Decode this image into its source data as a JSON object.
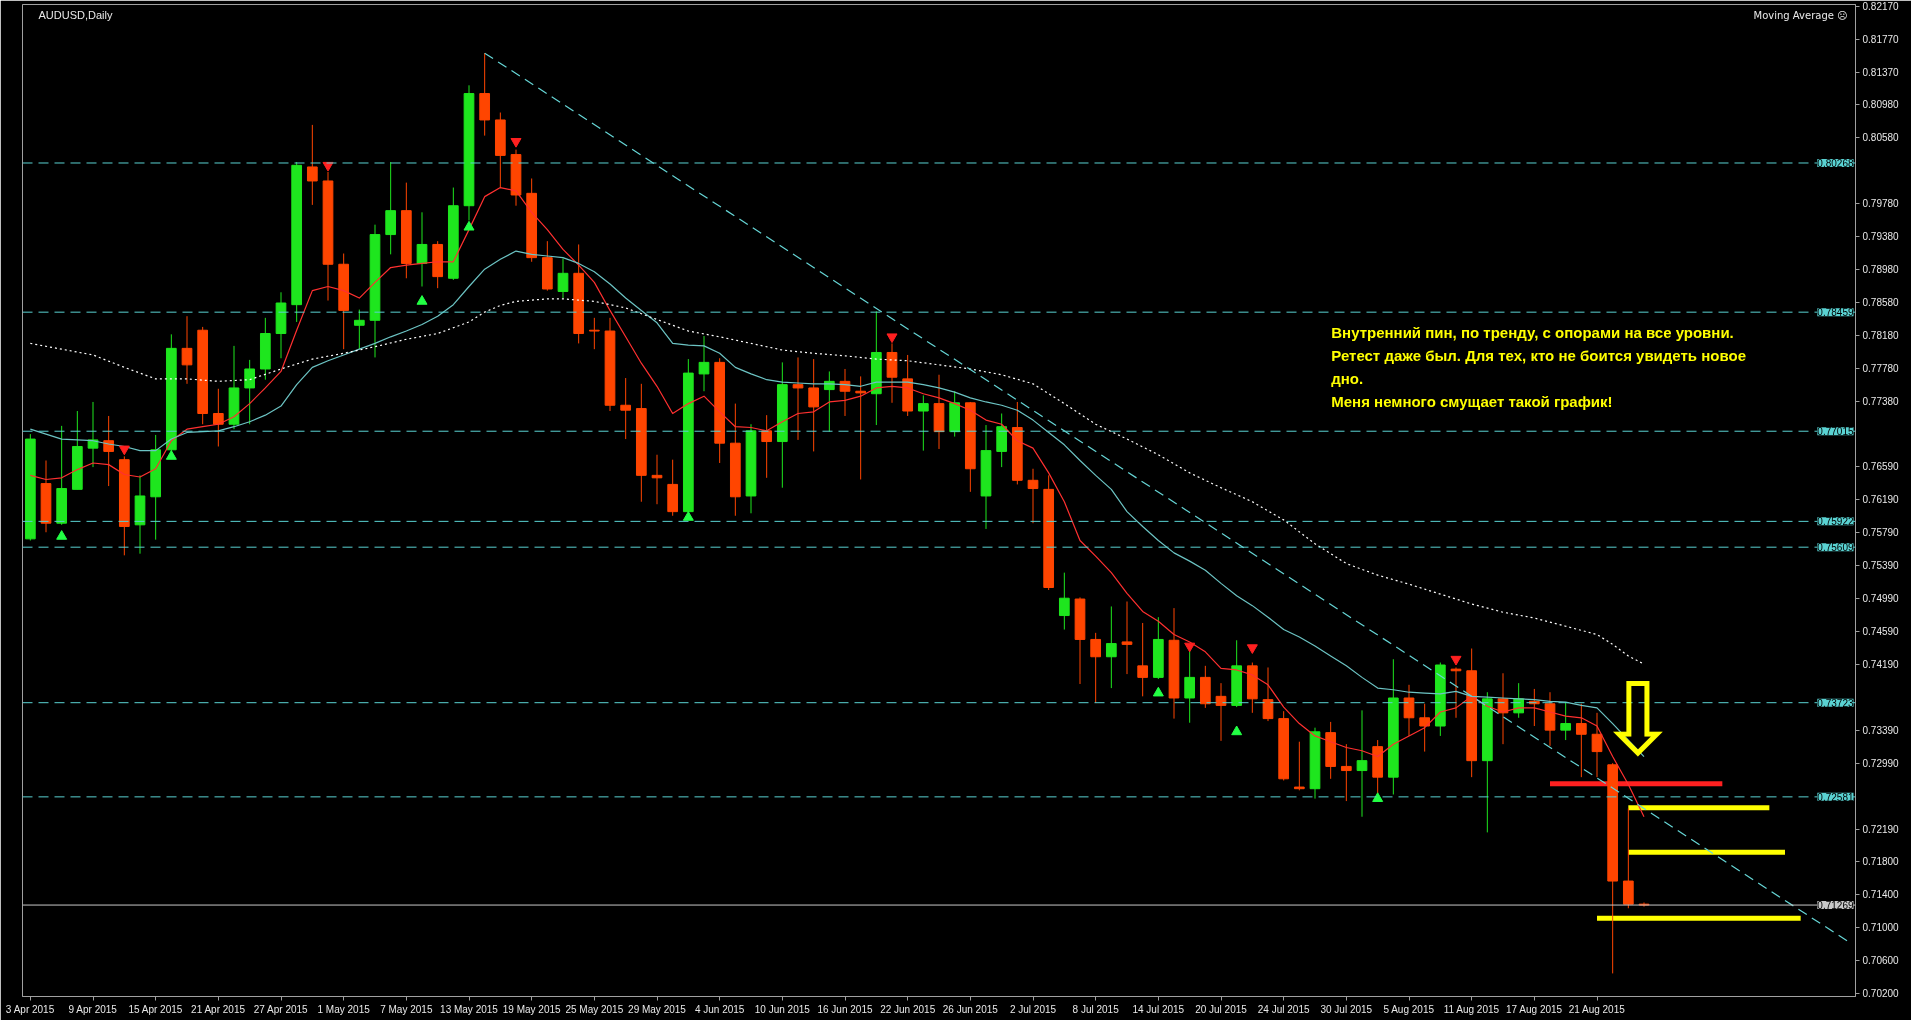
{
  "chart_data": {
    "type": "candlestick",
    "title": "AUDUSD,Daily",
    "annotations": [
      "Moving Average ☹",
      "Внутренний пин, по тренду, с опорами на все уровни.\nРетест даже был. Для тех, кто не боится увидеть новое\nдно.\nМеня немного смущает такой график!",
      "⇩"
    ],
    "categories": [
      "3 Apr 2015",
      null,
      null,
      null,
      "9 Apr 2015",
      null,
      null,
      null,
      "15 Apr 2015",
      null,
      null,
      null,
      "21 Apr 2015",
      null,
      null,
      null,
      "27 Apr 2015",
      null,
      null,
      null,
      "1 May 2015",
      null,
      null,
      null,
      "7 May 2015",
      null,
      null,
      null,
      "13 May 2015",
      null,
      null,
      null,
      "19 May 2015",
      null,
      null,
      null,
      "25 May 2015",
      null,
      null,
      null,
      "29 May 2015",
      null,
      null,
      null,
      "4 Jun 2015",
      null,
      null,
      null,
      "10 Jun 2015",
      null,
      null,
      null,
      "16 Jun 2015",
      null,
      null,
      null,
      "22 Jun 2015",
      null,
      null,
      null,
      "26 Jun 2015",
      null,
      null,
      null,
      "2 Jul 2015",
      null,
      null,
      null,
      "8 Jul 2015",
      null,
      null,
      null,
      "14 Jul 2015",
      null,
      null,
      null,
      "20 Jul 2015",
      null,
      null,
      null,
      "24 Jul 2015",
      null,
      null,
      null,
      "30 Jul 2015",
      null,
      null,
      null,
      "5 Aug 2015",
      null,
      null,
      null,
      "11 Aug 2015",
      null,
      null,
      null,
      "17 Aug 2015",
      null,
      null,
      null,
      "21 Aug 2015",
      null,
      null,
      null,
      null,
      null,
      null,
      null,
      null,
      null,
      null,
      null,
      null,
      null,
      null,
      null,
      null
    ],
    "ohlc": [
      [
        0.7571,
        0.7698,
        0.7569,
        0.7692
      ],
      [
        0.7638,
        0.7666,
        0.7579,
        0.759
      ],
      [
        0.759,
        0.7708,
        0.7588,
        0.7632
      ],
      [
        0.7631,
        0.7726,
        0.7631,
        0.7683
      ],
      [
        0.7681,
        0.7737,
        0.7658,
        0.7691
      ],
      [
        0.769,
        0.772,
        0.7635,
        0.7677
      ],
      [
        0.7667,
        0.7671,
        0.7551,
        0.7586
      ],
      [
        0.7588,
        0.7648,
        0.7553,
        0.7623
      ],
      [
        0.7622,
        0.7697,
        0.757,
        0.7679
      ],
      [
        0.7679,
        0.7819,
        0.7675,
        0.7802
      ],
      [
        0.7802,
        0.7841,
        0.7759,
        0.7782
      ],
      [
        0.7824,
        0.7828,
        0.771,
        0.7723
      ],
      [
        0.7723,
        0.7753,
        0.7683,
        0.771
      ],
      [
        0.771,
        0.7805,
        0.7704,
        0.7754
      ],
      [
        0.7754,
        0.7788,
        0.771,
        0.7777
      ],
      [
        0.7777,
        0.7839,
        0.7764,
        0.782
      ],
      [
        0.782,
        0.787,
        0.779,
        0.7857
      ],
      [
        0.7855,
        0.8028,
        0.7834,
        0.8024
      ],
      [
        0.8022,
        0.8073,
        0.7976,
        0.8005
      ],
      [
        0.8005,
        0.8016,
        0.786,
        0.7904
      ],
      [
        0.7904,
        0.7917,
        0.7801,
        0.7848
      ],
      [
        0.783,
        0.7849,
        0.7801,
        0.7836
      ],
      [
        0.7836,
        0.7952,
        0.7791,
        0.794
      ],
      [
        0.794,
        0.8028,
        0.7916,
        0.7969
      ],
      [
        0.7969,
        0.8003,
        0.7887,
        0.7905
      ],
      [
        0.7905,
        0.7967,
        0.7877,
        0.7928
      ],
      [
        0.7928,
        0.7932,
        0.7875,
        0.7889
      ],
      [
        0.7887,
        0.7997,
        0.7885,
        0.7975
      ],
      [
        0.7975,
        0.8121,
        0.7957,
        0.8111
      ],
      [
        0.8111,
        0.816,
        0.806,
        0.8079
      ],
      [
        0.8079,
        0.8088,
        0.7997,
        0.8036
      ],
      [
        0.8037,
        0.8043,
        0.7975,
        0.7988
      ],
      [
        0.799,
        0.8008,
        0.7907,
        0.7912
      ],
      [
        0.7912,
        0.7932,
        0.7872,
        0.7874
      ],
      [
        0.7871,
        0.7911,
        0.7863,
        0.7893
      ],
      [
        0.7893,
        0.7928,
        0.7808,
        0.782
      ],
      [
        0.7824,
        0.7839,
        0.7801,
        0.7823
      ],
      [
        0.7823,
        0.7839,
        0.7726,
        0.7733
      ],
      [
        0.7733,
        0.7766,
        0.7692,
        0.7727
      ],
      [
        0.7729,
        0.7759,
        0.7616,
        0.7648
      ],
      [
        0.7648,
        0.7673,
        0.7613,
        0.7645
      ],
      [
        0.7637,
        0.7667,
        0.7599,
        0.7604
      ],
      [
        0.7604,
        0.7789,
        0.7603,
        0.7772
      ],
      [
        0.7771,
        0.7817,
        0.775,
        0.7785
      ],
      [
        0.7785,
        0.779,
        0.7663,
        0.7687
      ],
      [
        0.7687,
        0.7735,
        0.7599,
        0.7622
      ],
      [
        0.7623,
        0.771,
        0.7602,
        0.7702
      ],
      [
        0.7702,
        0.7721,
        0.7645,
        0.7689
      ],
      [
        0.7689,
        0.7785,
        0.7633,
        0.7758
      ],
      [
        0.7758,
        0.7791,
        0.7691,
        0.7754
      ],
      [
        0.7754,
        0.7789,
        0.7677,
        0.7731
      ],
      [
        0.7752,
        0.7774,
        0.7701,
        0.7762
      ],
      [
        0.7762,
        0.7777,
        0.772,
        0.775
      ],
      [
        0.775,
        0.7768,
        0.7643,
        0.7748
      ],
      [
        0.7747,
        0.7847,
        0.7709,
        0.7797
      ],
      [
        0.7797,
        0.7808,
        0.7736,
        0.7767
      ],
      [
        0.7765,
        0.7794,
        0.772,
        0.7726
      ],
      [
        0.7726,
        0.7745,
        0.7678,
        0.7735
      ],
      [
        0.7735,
        0.777,
        0.768,
        0.7701
      ],
      [
        0.7701,
        0.775,
        0.7695,
        0.7736
      ],
      [
        0.7736,
        0.7737,
        0.7628,
        0.7656
      ],
      [
        0.7623,
        0.7709,
        0.7583,
        0.7678
      ],
      [
        0.7677,
        0.7723,
        0.7658,
        0.7707
      ],
      [
        0.7706,
        0.7737,
        0.7637,
        0.7642
      ],
      [
        0.7642,
        0.7656,
        0.759,
        0.7632
      ],
      [
        0.7631,
        0.7648,
        0.7509,
        0.7512
      ],
      [
        0.7478,
        0.753,
        0.7461,
        0.7499
      ],
      [
        0.7498,
        0.75,
        0.7395,
        0.7449
      ],
      [
        0.7449,
        0.7457,
        0.7372,
        0.7428
      ],
      [
        0.7428,
        0.7489,
        0.739,
        0.7444
      ],
      [
        0.7446,
        0.7495,
        0.7407,
        0.7443
      ],
      [
        0.7417,
        0.7469,
        0.738,
        0.7403
      ],
      [
        0.7403,
        0.7476,
        0.7401,
        0.7449
      ],
      [
        0.7448,
        0.7487,
        0.7353,
        0.7378
      ],
      [
        0.7378,
        0.7435,
        0.7348,
        0.7403
      ],
      [
        0.7403,
        0.7417,
        0.7366,
        0.7371
      ],
      [
        0.738,
        0.7396,
        0.7326,
        0.7369
      ],
      [
        0.7369,
        0.7448,
        0.7367,
        0.7417
      ],
      [
        0.7417,
        0.7421,
        0.736,
        0.7377
      ],
      [
        0.7376,
        0.7415,
        0.735,
        0.7353
      ],
      [
        0.7353,
        0.7362,
        0.7278,
        0.728
      ],
      [
        0.727,
        0.7325,
        0.7266,
        0.7268
      ],
      [
        0.7268,
        0.7342,
        0.7256,
        0.7337
      ],
      [
        0.7336,
        0.7349,
        0.728,
        0.7295
      ],
      [
        0.7295,
        0.7322,
        0.7253,
        0.729
      ],
      [
        0.729,
        0.7363,
        0.7234,
        0.7302
      ],
      [
        0.7319,
        0.7327,
        0.7262,
        0.7282
      ],
      [
        0.7282,
        0.7425,
        0.7261,
        0.7378
      ],
      [
        0.7378,
        0.7394,
        0.7332,
        0.7354
      ],
      [
        0.7354,
        0.7371,
        0.7313,
        0.7344
      ],
      [
        0.7344,
        0.7421,
        0.7332,
        0.7418
      ],
      [
        0.7413,
        0.7415,
        0.7354,
        0.7411
      ],
      [
        0.7411,
        0.7438,
        0.7282,
        0.7302
      ],
      [
        0.7302,
        0.7385,
        0.7215,
        0.7377
      ],
      [
        0.7377,
        0.7408,
        0.7322,
        0.736
      ],
      [
        0.736,
        0.7396,
        0.7354,
        0.7377
      ],
      [
        0.7374,
        0.7389,
        0.7344,
        0.7371
      ],
      [
        0.7371,
        0.7385,
        0.732,
        0.7339
      ],
      [
        0.7339,
        0.7373,
        0.7327,
        0.7347
      ],
      [
        0.7347,
        0.7371,
        0.7282,
        0.7334
      ],
      [
        0.7334,
        0.736,
        0.7282,
        0.7313
      ],
      [
        0.7297,
        0.7299,
        0.7044,
        0.7156
      ],
      [
        0.7156,
        0.7244,
        0.7123,
        0.7128
      ],
      [
        0.7128,
        0.713,
        0.7125,
        0.71269
      ],
      null,
      null,
      null,
      null,
      null,
      null,
      null,
      null,
      null,
      null,
      null,
      null,
      null
    ],
    "colors": [
      "#1ee61e",
      "#ff4500",
      "#1ee61e",
      "#1ee61e",
      "#1ee61e",
      "#ff4500",
      "#ff4500",
      "#1ee61e",
      "#1ee61e",
      "#1ee61e",
      "#ff4500",
      "#ff4500",
      "#ff4500",
      "#1ee61e",
      "#1ee61e",
      "#1ee61e",
      "#1ee61e",
      "#1ee61e",
      "#ff4500",
      "#ff4500",
      "#ff4500",
      "#1ee61e",
      "#1ee61e",
      "#1ee61e",
      "#ff4500",
      "#1ee61e",
      "#ff4500",
      "#1ee61e",
      "#1ee61e",
      "#ff4500",
      "#ff4500",
      "#ff4500",
      "#ff4500",
      "#ff4500",
      "#1ee61e",
      "#ff4500",
      "#ff4500",
      "#ff4500",
      "#ff4500",
      "#ff4500",
      "#ff4500",
      "#ff4500",
      "#1ee61e",
      "#1ee61e",
      "#ff4500",
      "#ff4500",
      "#1ee61e",
      "#ff4500",
      "#1ee61e",
      "#ff4500",
      "#ff4500",
      "#1ee61e",
      "#ff4500",
      "#ff4500",
      "#1ee61e",
      "#ff4500",
      "#ff4500",
      "#1ee61e",
      "#ff4500",
      "#1ee61e",
      "#ff4500",
      "#1ee61e",
      "#1ee61e",
      "#ff4500",
      "#ff4500",
      "#ff4500",
      "#1ee61e",
      "#ff4500",
      "#ff4500",
      "#1ee61e",
      "#ff4500",
      "#ff4500",
      "#1ee61e",
      "#ff4500",
      "#1ee61e",
      "#ff4500",
      "#ff4500",
      "#1ee61e",
      "#ff4500",
      "#ff4500",
      "#ff4500",
      "#ff4500",
      "#1ee61e",
      "#ff4500",
      "#ff4500",
      "#1ee61e",
      "#ff4500",
      "#1ee61e",
      "#ff4500",
      "#ff4500",
      "#1ee61e",
      "#ff4500",
      "#ff4500",
      "#1ee61e",
      "#ff4500",
      "#1ee61e",
      "#ff4500",
      "#ff4500",
      "#1ee61e",
      "#ff4500",
      "#ff4500",
      "#ff4500",
      "#ff4500",
      "#ff4500",
      null,
      null,
      null,
      null,
      null,
      null,
      null,
      null,
      null,
      null,
      null,
      null,
      null
    ],
    "series": [
      {
        "type": "line",
        "color": "#ff3030",
        "line_style": "solid",
        "values": [
          0.7648,
          0.7643,
          0.7645,
          0.7655,
          0.7663,
          0.7661,
          0.7649,
          0.7646,
          0.7656,
          0.769,
          0.7704,
          0.7707,
          0.771,
          0.7719,
          0.7735,
          0.7754,
          0.7774,
          0.7824,
          0.7872,
          0.7877,
          0.7872,
          0.7863,
          0.7882,
          0.79,
          0.7903,
          0.7905,
          0.7907,
          0.7907,
          0.7946,
          0.7986,
          0.7997,
          0.7993,
          0.7967,
          0.7946,
          0.7922,
          0.7903,
          0.7882,
          0.7848,
          0.7816,
          0.7784,
          0.7756,
          0.7723,
          0.7735,
          0.7744,
          0.7725,
          0.7707,
          0.7706,
          0.7702,
          0.7713,
          0.7723,
          0.7725,
          0.7737,
          0.7739,
          0.7744,
          0.7754,
          0.7756,
          0.7754,
          0.7747,
          0.7742,
          0.7735,
          0.7727,
          0.7715,
          0.771,
          0.769,
          0.7681,
          0.7651,
          0.7616,
          0.7569,
          0.755,
          0.753,
          0.7505,
          0.7483,
          0.7471,
          0.7455,
          0.7446,
          0.7434,
          0.7414,
          0.7412,
          0.7406,
          0.7394,
          0.7367,
          0.7347,
          0.7332,
          0.7325,
          0.7318,
          0.7314,
          0.7307,
          0.7322,
          0.7332,
          0.7342,
          0.7361,
          0.7366,
          0.738,
          0.7368,
          0.7361,
          0.7366,
          0.7366,
          0.7361,
          0.7356,
          0.7354,
          0.7344,
          0.7307,
          0.7273,
          0.7234,
          null,
          null,
          null,
          null,
          null,
          null,
          null,
          null,
          null,
          null,
          null,
          null,
          null
        ]
      },
      {
        "type": "line",
        "color": "#6cc4c4",
        "line_style": "solid",
        "values": [
          0.7704,
          0.7698,
          0.7692,
          0.7691,
          0.769,
          0.7686,
          0.7683,
          0.7678,
          0.7678,
          0.7692,
          0.77,
          0.7701,
          0.7702,
          0.7707,
          0.7713,
          0.7721,
          0.7732,
          0.7758,
          0.7779,
          0.7787,
          0.7794,
          0.7801,
          0.7808,
          0.7816,
          0.7823,
          0.7831,
          0.7841,
          0.7855,
          0.7877,
          0.7898,
          0.791,
          0.792,
          0.7916,
          0.7914,
          0.7912,
          0.7905,
          0.7895,
          0.788,
          0.7863,
          0.7848,
          0.7833,
          0.7808,
          0.7806,
          0.7805,
          0.7796,
          0.7779,
          0.7771,
          0.7764,
          0.7761,
          0.776,
          0.7759,
          0.7759,
          0.7758,
          0.7756,
          0.7761,
          0.7761,
          0.7761,
          0.7758,
          0.7754,
          0.7749,
          0.7742,
          0.7737,
          0.7733,
          0.7727,
          0.7715,
          0.77,
          0.7685,
          0.7666,
          0.7648,
          0.7631,
          0.7604,
          0.7586,
          0.7569,
          0.7554,
          0.7544,
          0.7533,
          0.7517,
          0.7502,
          0.749,
          0.7476,
          0.7461,
          0.7452,
          0.7441,
          0.7429,
          0.7417,
          0.7403,
          0.739,
          0.7388,
          0.7385,
          0.7384,
          0.7383,
          0.7386,
          0.738,
          0.7379,
          0.7378,
          0.7377,
          0.7376,
          0.7374,
          0.7373,
          0.7369,
          0.7366,
          0.7347,
          0.7327,
          0.7307,
          null,
          null,
          null,
          null,
          null,
          null,
          null,
          null,
          null,
          null,
          null,
          null,
          null
        ]
      },
      {
        "type": "line",
        "color": "#ffffff",
        "line_style": "dotted",
        "values": [
          0.7808,
          null,
          0.7801,
          null,
          0.7794,
          null,
          0.7779,
          null,
          0.7765,
          null,
          0.7765,
          null,
          0.7762,
          null,
          0.7764,
          null,
          0.7777,
          null,
          0.7789,
          null,
          0.7796,
          null,
          0.7804,
          null,
          0.7813,
          null,
          0.782,
          null,
          0.7834,
          0.7846,
          0.7854,
          0.7859,
          null,
          0.7862,
          0.7862,
          null,
          0.7859,
          0.7855,
          0.7851,
          null,
          0.7837,
          null,
          0.7823,
          null,
          0.7816,
          null,
          0.7808,
          null,
          0.78,
          null,
          0.7796,
          null,
          0.7793,
          null,
          0.7789,
          null,
          0.7787,
          null,
          0.7782,
          null,
          0.7777,
          null,
          0.777,
          null,
          0.7759,
          null,
          0.7735,
          null,
          0.771,
          null,
          0.7692,
          null,
          0.7673,
          null,
          0.7651,
          null,
          0.7633,
          null,
          0.7616,
          null,
          0.7594,
          null,
          0.7565,
          null,
          0.7541,
          null,
          0.7527,
          null,
          0.7516,
          null,
          0.7504,
          null,
          0.7492,
          null,
          0.7482,
          null,
          0.7475,
          null,
          0.7465,
          null,
          0.7455,
          0.7443,
          0.7429,
          0.7419,
          null,
          null,
          null,
          null,
          null,
          null,
          null,
          null,
          null,
          null,
          null,
          null,
          null
        ]
      },
      {
        "type": "line",
        "color": "#66d6d6",
        "line_style": "dashed",
        "values": [
          null,
          null,
          null,
          null,
          null,
          null,
          null,
          null,
          null,
          null,
          null,
          null,
          null,
          null,
          null,
          null,
          null,
          null,
          null,
          null,
          null,
          null,
          null,
          null,
          null,
          null,
          null,
          null,
          null,
          0.816,
          null,
          null,
          null,
          null,
          null,
          null,
          null,
          null,
          null,
          null,
          null,
          null,
          null,
          null,
          null,
          null,
          null,
          null,
          null,
          null,
          null,
          null,
          null,
          null,
          null,
          null,
          null,
          null,
          null,
          null,
          null,
          null,
          null,
          null,
          null,
          null,
          null,
          null,
          null,
          null,
          null,
          null,
          null,
          null,
          null,
          null,
          null,
          null,
          null,
          null,
          null,
          null,
          null,
          null,
          null,
          null,
          null,
          null,
          null,
          null,
          null,
          null,
          null,
          null,
          null,
          null,
          null,
          null,
          null,
          null,
          null,
          null,
          null,
          null,
          null,
          null,
          null,
          null,
          null,
          null,
          null,
          null,
          null,
          null,
          null,
          null,
          0.7083
        ]
      },
      {
        "type": "line",
        "color": "#ff2020",
        "line_style": "solid",
        "values": [
          null,
          null,
          null,
          null,
          null,
          null,
          null,
          null,
          null,
          null,
          null,
          null,
          null,
          null,
          null,
          null,
          null,
          null,
          null,
          null,
          null,
          null,
          null,
          null,
          null,
          null,
          null,
          null,
          null,
          null,
          null,
          null,
          null,
          null,
          null,
          null,
          null,
          null,
          null,
          null,
          null,
          null,
          null,
          null,
          null,
          null,
          null,
          null,
          null,
          null,
          null,
          null,
          null,
          null,
          null,
          null,
          null,
          null,
          null,
          null,
          null,
          null,
          null,
          null,
          null,
          null,
          null,
          null,
          null,
          null,
          null,
          null,
          null,
          null,
          null,
          null,
          null,
          null,
          null,
          null,
          null,
          null,
          null,
          null,
          null,
          null,
          null,
          null,
          null,
          null,
          null,
          null,
          null,
          null,
          null,
          null,
          null,
          0.7274,
          null,
          null,
          null,
          null,
          null,
          null,
          null,
          null,
          null,
          null,
          0.7274,
          null,
          null,
          null,
          null,
          null,
          null,
          null,
          null
        ]
      },
      {
        "type": "line",
        "color": "#ffff00",
        "line_style": "solid",
        "values": [
          null,
          null,
          null,
          null,
          null,
          null,
          null,
          null,
          null,
          null,
          null,
          null,
          null,
          null,
          null,
          null,
          null,
          null,
          null,
          null,
          null,
          null,
          null,
          null,
          null,
          null,
          null,
          null,
          null,
          null,
          null,
          null,
          null,
          null,
          null,
          null,
          null,
          null,
          null,
          null,
          null,
          null,
          null,
          null,
          null,
          null,
          null,
          null,
          null,
          null,
          null,
          null,
          null,
          null,
          null,
          null,
          null,
          null,
          null,
          null,
          null,
          null,
          null,
          null,
          null,
          null,
          null,
          null,
          null,
          null,
          null,
          null,
          null,
          null,
          null,
          null,
          null,
          null,
          null,
          null,
          null,
          null,
          null,
          null,
          null,
          null,
          null,
          null,
          null,
          null,
          null,
          null,
          null,
          null,
          null,
          null,
          null,
          null,
          null,
          null,
          null,
          null,
          0.7245,
          null,
          null,
          null,
          null,
          null,
          null,
          null,
          null,
          0.7245,
          null,
          null,
          null,
          null,
          null
        ]
      },
      {
        "type": "line",
        "color": "#ffff00",
        "line_style": "solid",
        "values": [
          null,
          null,
          null,
          null,
          null,
          null,
          null,
          null,
          null,
          null,
          null,
          null,
          null,
          null,
          null,
          null,
          null,
          null,
          null,
          null,
          null,
          null,
          null,
          null,
          null,
          null,
          null,
          null,
          null,
          null,
          null,
          null,
          null,
          null,
          null,
          null,
          null,
          null,
          null,
          null,
          null,
          null,
          null,
          null,
          null,
          null,
          null,
          null,
          null,
          null,
          null,
          null,
          null,
          null,
          null,
          null,
          null,
          null,
          null,
          null,
          null,
          null,
          null,
          null,
          null,
          null,
          null,
          null,
          null,
          null,
          null,
          null,
          null,
          null,
          null,
          null,
          null,
          null,
          null,
          null,
          null,
          null,
          null,
          null,
          null,
          null,
          null,
          null,
          null,
          null,
          null,
          null,
          null,
          null,
          null,
          null,
          null,
          null,
          null,
          null,
          null,
          null,
          0.7191,
          null,
          null,
          null,
          null,
          null,
          null,
          null,
          null,
          null,
          0.7191,
          null,
          null,
          null,
          null
        ]
      },
      {
        "type": "line",
        "color": "#ffff00",
        "line_style": "solid",
        "values": [
          null,
          null,
          null,
          null,
          null,
          null,
          null,
          null,
          null,
          null,
          null,
          null,
          null,
          null,
          null,
          null,
          null,
          null,
          null,
          null,
          null,
          null,
          null,
          null,
          null,
          null,
          null,
          null,
          null,
          null,
          null,
          null,
          null,
          null,
          null,
          null,
          null,
          null,
          null,
          null,
          null,
          null,
          null,
          null,
          null,
          null,
          null,
          null,
          null,
          null,
          null,
          null,
          null,
          null,
          null,
          null,
          null,
          null,
          null,
          null,
          null,
          null,
          null,
          null,
          null,
          null,
          null,
          null,
          null,
          null,
          null,
          null,
          null,
          null,
          null,
          null,
          null,
          null,
          null,
          null,
          null,
          null,
          null,
          null,
          null,
          null,
          null,
          null,
          null,
          null,
          null,
          null,
          null,
          null,
          null,
          null,
          null,
          null,
          null,
          null,
          0.7111,
          null,
          null,
          null,
          null,
          null,
          null,
          null,
          null,
          null,
          null,
          null,
          null,
          0.7111,
          null,
          null,
          null
        ]
      },
      {
        "type": "scatter",
        "color": "#ff2020",
        "marker": "triangle",
        "values": [
          null,
          null,
          null,
          null,
          null,
          null,
          0.768,
          null,
          null,
          null,
          null,
          null,
          null,
          null,
          null,
          null,
          null,
          null,
          null,
          0.8024,
          null,
          null,
          null,
          null,
          null,
          null,
          null,
          null,
          null,
          null,
          null,
          0.8053,
          null,
          null,
          null,
          null,
          null,
          null,
          null,
          null,
          null,
          null,
          null,
          null,
          null,
          null,
          null,
          null,
          null,
          null,
          null,
          null,
          null,
          null,
          null,
          0.7816,
          null,
          null,
          null,
          null,
          null,
          null,
          null,
          null,
          null,
          null,
          null,
          null,
          null,
          null,
          null,
          null,
          null,
          null,
          0.7441,
          null,
          null,
          null,
          0.7439,
          null,
          null,
          null,
          null,
          null,
          null,
          null,
          null,
          null,
          null,
          null,
          null,
          0.7425,
          null,
          null,
          null,
          null,
          null,
          null,
          null,
          null,
          null,
          null,
          null,
          null,
          null,
          null,
          null,
          null,
          null,
          null,
          null,
          null,
          null,
          null,
          null,
          null,
          null
        ]
      },
      {
        "type": "scatter",
        "color": "#22ff44",
        "marker": "triangle",
        "values": [
          null,
          null,
          0.7574,
          null,
          null,
          null,
          null,
          null,
          null,
          0.7671,
          null,
          null,
          null,
          null,
          null,
          null,
          null,
          null,
          null,
          null,
          null,
          null,
          null,
          null,
          null,
          0.7859,
          null,
          null,
          0.7949,
          null,
          null,
          null,
          null,
          null,
          null,
          null,
          null,
          null,
          null,
          null,
          null,
          null,
          0.7597,
          null,
          null,
          null,
          null,
          null,
          null,
          null,
          null,
          null,
          null,
          null,
          null,
          null,
          null,
          null,
          null,
          null,
          null,
          null,
          null,
          null,
          null,
          null,
          null,
          null,
          null,
          null,
          null,
          null,
          0.7384,
          null,
          null,
          null,
          null,
          0.7337,
          null,
          null,
          null,
          null,
          null,
          null,
          null,
          null,
          0.7256,
          null,
          null,
          null,
          null,
          null,
          null,
          null,
          null,
          null,
          null,
          null,
          null,
          null,
          null,
          null,
          null,
          null,
          null,
          null,
          null,
          null,
          null,
          null,
          null,
          null,
          null,
          null,
          null,
          null,
          null
        ]
      }
    ],
    "ylim": [
      0.7016,
      0.8219
    ],
    "yticks": [
      {
        "value": 0.8217,
        "label": "0.82170"
      },
      {
        "value": 0.8177,
        "label": "0.81770"
      },
      {
        "value": 0.8137,
        "label": "0.81370"
      },
      {
        "value": 0.8098,
        "label": "0.80980"
      },
      {
        "value": 0.8058,
        "label": "0.80580"
      },
      {
        "value": 0.7978,
        "label": "0.79780"
      },
      {
        "value": 0.7938,
        "label": "0.79380"
      },
      {
        "value": 0.7898,
        "label": "0.78980"
      },
      {
        "value": 0.7858,
        "label": "0.78580"
      },
      {
        "value": 0.7818,
        "label": "0.78180"
      },
      {
        "value": 0.7778,
        "label": "0.77780"
      },
      {
        "value": 0.7738,
        "label": "0.77380"
      },
      {
        "value": 0.7659,
        "label": "0.76590"
      },
      {
        "value": 0.7619,
        "label": "0.76190"
      },
      {
        "value": 0.7579,
        "label": "0.75790"
      },
      {
        "value": 0.7539,
        "label": "0.75390"
      },
      {
        "value": 0.7499,
        "label": "0.74990"
      },
      {
        "value": 0.7459,
        "label": "0.74590"
      },
      {
        "value": 0.7419,
        "label": "0.74190"
      },
      {
        "value": 0.7339,
        "label": "0.73390"
      },
      {
        "value": 0.7299,
        "label": "0.72990"
      },
      {
        "value": 0.7219,
        "label": "0.72190"
      },
      {
        "value": 0.718,
        "label": "0.71800"
      },
      {
        "value": 0.714,
        "label": "0.71400"
      },
      {
        "value": 0.71,
        "label": "0.71000"
      },
      {
        "value": 0.706,
        "label": "0.70600"
      },
      {
        "value": 0.702,
        "label": "0.70200"
      }
    ],
    "ref_lines": [
      {
        "axis": "y",
        "value": 0.80268,
        "label": "0.80268",
        "color": "#5ad2d2",
        "line_style": "dashed"
      },
      {
        "axis": "y",
        "value": 0.78459,
        "label": "0.78459",
        "color": "#5ad2d2",
        "line_style": "dashed"
      },
      {
        "axis": "y",
        "value": 0.77015,
        "label": "0.77015",
        "color": "#5ad2d2",
        "line_style": "dashed"
      },
      {
        "axis": "y",
        "value": 0.75922,
        "label": "0.75922",
        "color": "#5ad2d2",
        "line_style": "dashed"
      },
      {
        "axis": "y",
        "value": 0.75609,
        "label": "0.75609",
        "color": "#5ad2d2",
        "line_style": "dashed"
      },
      {
        "axis": "y",
        "value": 0.73723,
        "label": "0.73723",
        "color": "#5ad2d2",
        "line_style": "dashed"
      },
      {
        "axis": "y",
        "value": 0.72581,
        "label": "0.72581",
        "color": "#5ad2d2",
        "line_style": "dashed"
      },
      {
        "axis": "y",
        "value": 0.71269,
        "label": "0.71269",
        "color": "#c8c8c8",
        "line_style": "solid"
      }
    ]
  }
}
